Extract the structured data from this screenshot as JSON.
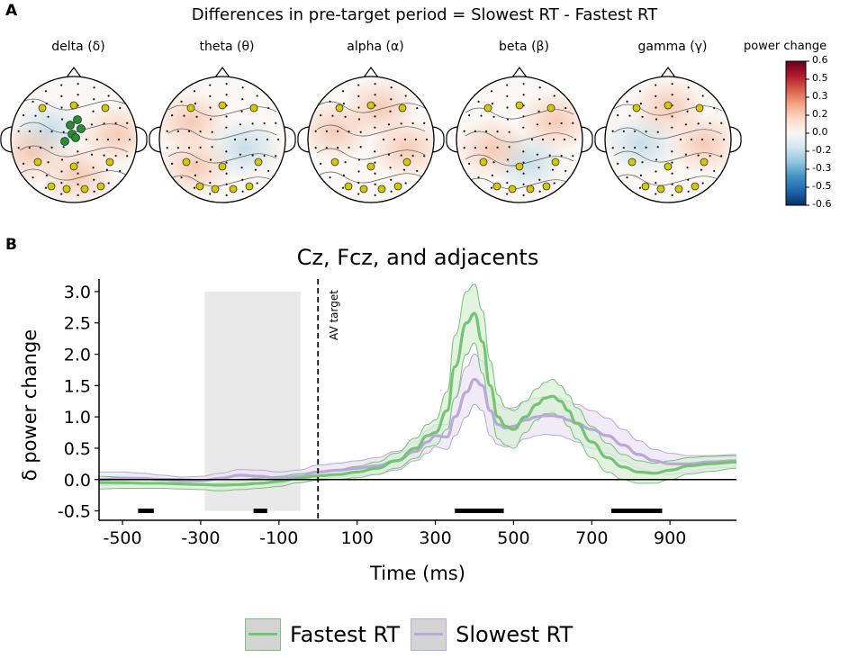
{
  "panel_a": {
    "label": "A",
    "title": "Differences in pre-target period = Slowest RT - Fastest RT",
    "topomaps": [
      {
        "name": "delta",
        "label": "delta (δ)"
      },
      {
        "name": "theta",
        "label": "theta (θ)"
      },
      {
        "name": "alpha",
        "label": "alpha (α)"
      },
      {
        "name": "beta",
        "label": "beta (β)"
      },
      {
        "name": "gamma",
        "label": "gamma (γ)"
      }
    ],
    "colorbar": {
      "title": "power change",
      "ticks": [
        "0.6",
        "0.5",
        "0.3",
        "0.2",
        "0.0",
        "-0.2",
        "-0.3",
        "-0.5",
        "-0.6"
      ],
      "colors": [
        "#67001f",
        "#b2182b",
        "#d6604d",
        "#f4a582",
        "#fddbc7",
        "#f7f7f7",
        "#d1e5f0",
        "#92c5de",
        "#4393c3",
        "#2166ac",
        "#053061"
      ]
    },
    "marker_colors": {
      "yellow": "#d4c800",
      "green": "#2e8b2e"
    }
  },
  "panel_b": {
    "label": "B",
    "chart_data": {
      "type": "line",
      "title": "Cz, Fcz, and adjacents",
      "xlabel": "Time (ms)",
      "ylabel": "δ power change",
      "xlim": [
        -560,
        1070
      ],
      "ylim": [
        -0.65,
        3.2
      ],
      "xticks": [
        "-500",
        "-300",
        "-100",
        "100",
        "300",
        "500",
        "700",
        "900"
      ],
      "xtick_values": [
        -500,
        -300,
        -100,
        100,
        300,
        500,
        700,
        900
      ],
      "yticks": [
        "3.0",
        "2.5",
        "2.0",
        "1.5",
        "1.0",
        "0.5",
        "0.0",
        "-0.5"
      ],
      "ytick_values": [
        3.0,
        2.5,
        2.0,
        1.5,
        1.0,
        0.5,
        0.0,
        -0.5
      ],
      "annotation": "AV target",
      "target_time": 0,
      "baseline_window": [
        -290,
        -45
      ],
      "significance_bars": [
        [
          -460,
          -420
        ],
        [
          -165,
          -130
        ],
        [
          350,
          475
        ],
        [
          750,
          880
        ]
      ],
      "significance_y": -0.5,
      "x": [
        -560,
        -500,
        -450,
        -400,
        -350,
        -300,
        -250,
        -200,
        -150,
        -100,
        -50,
        0,
        50,
        100,
        150,
        200,
        250,
        280,
        300,
        330,
        350,
        380,
        400,
        420,
        440,
        460,
        480,
        500,
        530,
        560,
        580,
        600,
        620,
        640,
        660,
        700,
        740,
        780,
        820,
        860,
        900,
        950,
        1000,
        1070
      ],
      "series": [
        {
          "name": "Fastest RT",
          "color": "#74c476",
          "fill": "#d9efd5",
          "values": [
            -0.05,
            -0.05,
            -0.06,
            -0.06,
            -0.07,
            -0.08,
            -0.09,
            -0.08,
            -0.06,
            -0.03,
            0.02,
            0.06,
            0.08,
            0.12,
            0.18,
            0.3,
            0.5,
            0.7,
            0.75,
            1.1,
            1.8,
            2.5,
            2.65,
            2.2,
            1.5,
            1.0,
            0.85,
            0.8,
            1.0,
            1.2,
            1.3,
            1.33,
            1.25,
            1.1,
            0.9,
            0.6,
            0.35,
            0.2,
            0.12,
            0.1,
            0.15,
            0.22,
            0.25,
            0.28
          ],
          "upper": [
            0.05,
            0.04,
            0.02,
            0.02,
            0.01,
            0.0,
            0.0,
            0.0,
            0.02,
            0.05,
            0.09,
            0.13,
            0.16,
            0.21,
            0.28,
            0.42,
            0.66,
            0.88,
            0.95,
            1.4,
            2.3,
            3.0,
            3.12,
            2.7,
            1.9,
            1.35,
            1.15,
            1.1,
            1.25,
            1.45,
            1.55,
            1.6,
            1.5,
            1.35,
            1.15,
            0.85,
            0.58,
            0.4,
            0.3,
            0.26,
            0.3,
            0.35,
            0.37,
            0.38
          ],
          "lower": [
            -0.15,
            -0.14,
            -0.14,
            -0.14,
            -0.15,
            -0.16,
            -0.18,
            -0.16,
            -0.14,
            -0.11,
            -0.05,
            -0.01,
            0.0,
            0.03,
            0.08,
            0.18,
            0.34,
            0.52,
            0.55,
            0.8,
            1.3,
            2.0,
            2.18,
            1.7,
            1.1,
            0.65,
            0.55,
            0.5,
            0.75,
            0.95,
            1.05,
            1.06,
            1.0,
            0.85,
            0.65,
            0.35,
            0.12,
            0.0,
            -0.06,
            -0.06,
            0.0,
            0.09,
            0.13,
            0.18
          ]
        },
        {
          "name": "Slowest RT",
          "color": "#b9a8d8",
          "fill": "#ebe4f3",
          "values": [
            0.0,
            0.02,
            0.02,
            0.0,
            -0.02,
            -0.02,
            0.02,
            0.07,
            0.05,
            0.02,
            0.05,
            0.12,
            0.15,
            0.18,
            0.22,
            0.3,
            0.45,
            0.6,
            0.7,
            0.68,
            1.0,
            1.4,
            1.6,
            1.5,
            1.1,
            0.88,
            0.82,
            0.85,
            0.95,
            1.0,
            1.02,
            1.02,
            1.0,
            0.95,
            0.9,
            0.8,
            0.7,
            0.55,
            0.4,
            0.3,
            0.25,
            0.25,
            0.28,
            0.3
          ],
          "upper": [
            0.12,
            0.12,
            0.1,
            0.07,
            0.04,
            0.05,
            0.1,
            0.16,
            0.15,
            0.12,
            0.15,
            0.23,
            0.26,
            0.3,
            0.35,
            0.45,
            0.6,
            0.78,
            0.88,
            0.88,
            1.3,
            1.8,
            2.0,
            1.9,
            1.5,
            1.2,
            1.12,
            1.15,
            1.25,
            1.3,
            1.32,
            1.33,
            1.3,
            1.25,
            1.2,
            1.1,
            0.98,
            0.8,
            0.62,
            0.48,
            0.42,
            0.38,
            0.38,
            0.4
          ],
          "lower": [
            -0.1,
            -0.08,
            -0.06,
            -0.07,
            -0.08,
            -0.09,
            -0.06,
            -0.02,
            -0.05,
            -0.08,
            -0.05,
            0.01,
            0.04,
            0.06,
            0.09,
            0.15,
            0.3,
            0.42,
            0.52,
            0.48,
            0.7,
            1.0,
            1.2,
            1.1,
            0.7,
            0.56,
            0.52,
            0.55,
            0.65,
            0.7,
            0.72,
            0.71,
            0.7,
            0.65,
            0.6,
            0.5,
            0.42,
            0.3,
            0.18,
            0.12,
            0.08,
            0.12,
            0.18,
            0.2
          ]
        }
      ]
    }
  },
  "legend": [
    {
      "name": "Fastest RT",
      "line": "#74c476",
      "fill": "#d4d4d4",
      "border": "#74c476"
    },
    {
      "name": "Slowest RT",
      "line": "#b9a8d8",
      "fill": "#d4d4d4",
      "border": "#b9a8d8"
    }
  ]
}
